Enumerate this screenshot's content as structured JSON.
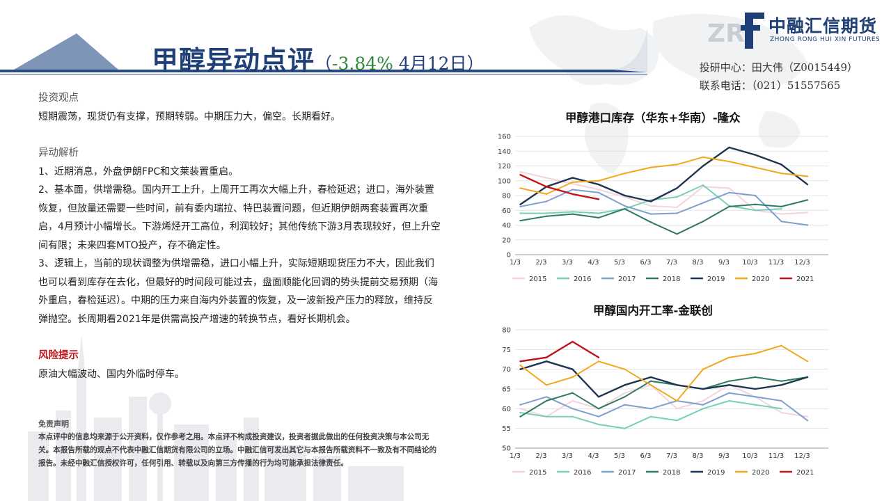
{
  "header": {
    "title": "甲醇异动点评",
    "sub_open": "（",
    "change_pct": "-3.84%",
    "date": " 4月12日",
    "sub_close": "）"
  },
  "logo": {
    "name_cn": "中融汇信期货",
    "name_en": "ZHONG RONG HUI XIN FUTURES"
  },
  "contact": {
    "line1": "投研中心：田大伟（Z0015449）",
    "line2": "联系电话：（021）51557565"
  },
  "view": {
    "heading": "投资观点",
    "text": "短期震荡，现货仍有支撑，预期转弱。中期压力大，偏空。长期看好。"
  },
  "analysis": {
    "heading": "异动解析",
    "p1": "1、近期消息，外盘伊朗FPC和文莱装置重启。",
    "p2": "2、基本面，供增需稳。国内开工上升，上周开工再次大幅上升，春检延迟；进口，海外装置恢复，但放量还需要一些时间，前有委内瑞拉、特巴装置问题，但近期伊朗两套装置再次重启，4月预计小幅增长。下游烯烃开工高位，利润较好；其他传统下游3月表现较好，但上升空间有限；未来四套MTO投产，存不确定性。",
    "p3": "3、逻辑上，当前的现状调整为供增需稳，进口小幅上升，实际短期现货压力不大，因此我们也可以看到库存在去化，但最好的时间段可能过去，盘面顺能化回调的势头提前交易预期（海外重启，春检延迟）。中期的压力来自海内外装置的恢复，及一波新投产压力的释放，维持反弹抛空。长周期看2021年是供需高投产增速的转换节点，看好长期机会。"
  },
  "risk": {
    "heading": "风险提示",
    "text": "原油大幅波动、国内外临时停车。"
  },
  "disclaimer": {
    "heading": "免责声明",
    "text": "本点评中的信息均来源于公开资料，仅作参考之用。本点评不构成投资建议，投资者据此做出的任何投资决策与本公司无关。本报告所载的观点不代表中融汇信期货有限公司的立场。中融汇信可发出其它与本报告所载资料不一致及有不同结论的报告。未经中融汇信授权许可，任何引用、转载以及向第三方传播的行为均可能承担法律责任。"
  },
  "chart_data": [
    {
      "type": "line",
      "title": "甲醇港口库存（华东+华南）-隆众",
      "categories": [
        "1/3",
        "2/3",
        "3/3",
        "4/3",
        "5/3",
        "6/3",
        "7/3",
        "8/3",
        "9/3",
        "10/3",
        "11/3",
        "12/3"
      ],
      "ylim": [
        0,
        160
      ],
      "yticks": [
        0,
        20,
        40,
        60,
        80,
        100,
        120,
        140,
        160
      ],
      "legend_position": "bottom",
      "series": [
        {
          "name": "2015",
          "color": "#f4d3dc",
          "values": [
            112,
            104,
            96,
            88,
            78,
            66,
            64,
            92,
            90,
            60,
            55,
            57
          ]
        },
        {
          "name": "2016",
          "color": "#78cfb8",
          "values": [
            56,
            56,
            58,
            56,
            62,
            74,
            78,
            94,
            66,
            60,
            62,
            null
          ]
        },
        {
          "name": "2017",
          "color": "#7ea0cc",
          "values": [
            65,
            72,
            88,
            84,
            66,
            55,
            56,
            70,
            84,
            80,
            45,
            40
          ]
        },
        {
          "name": "2018",
          "color": "#2f7a62",
          "values": [
            46,
            52,
            55,
            50,
            62,
            44,
            28,
            45,
            65,
            68,
            65,
            74
          ]
        },
        {
          "name": "2019",
          "color": "#1e3452",
          "values": [
            68,
            92,
            104,
            95,
            80,
            72,
            90,
            120,
            145,
            135,
            122,
            95
          ]
        },
        {
          "name": "2020",
          "color": "#f2a81c",
          "values": [
            90,
            82,
            98,
            100,
            110,
            118,
            122,
            132,
            126,
            118,
            110,
            106
          ]
        },
        {
          "name": "2021",
          "color": "#c0141b",
          "values": [
            108,
            92,
            82,
            75,
            null,
            null,
            null,
            null,
            null,
            null,
            null,
            null
          ]
        }
      ]
    },
    {
      "type": "line",
      "title": "甲醇国内开工率-金联创",
      "categories": [
        "1/3",
        "2/3",
        "3/3",
        "4/3",
        "5/3",
        "6/3",
        "7/3",
        "8/3",
        "9/3",
        "10/3",
        "11/3",
        "12/3"
      ],
      "ylim": [
        50,
        80
      ],
      "yticks": [
        50,
        55,
        60,
        65,
        70,
        75,
        80
      ],
      "legend_position": "bottom",
      "series": [
        {
          "name": "2015",
          "color": "#f4d3dc",
          "values": [
            60,
            58,
            62,
            60,
            64,
            66,
            60,
            62,
            66,
            63,
            59,
            58
          ]
        },
        {
          "name": "2016",
          "color": "#78cfb8",
          "values": [
            59,
            58,
            58,
            56,
            55,
            58,
            57,
            60,
            62,
            61,
            60,
            null
          ]
        },
        {
          "name": "2017",
          "color": "#7ea0cc",
          "values": [
            61,
            63,
            60,
            58,
            61,
            60,
            62,
            61,
            64,
            63,
            62,
            57
          ]
        },
        {
          "name": "2018",
          "color": "#2f7a62",
          "values": [
            58,
            62,
            64,
            60,
            63,
            67,
            66,
            65,
            67,
            68,
            67,
            68
          ]
        },
        {
          "name": "2019",
          "color": "#1e3452",
          "values": [
            70,
            72,
            70,
            63,
            66,
            68,
            66,
            65,
            66,
            65,
            66,
            68
          ]
        },
        {
          "name": "2020",
          "color": "#f2a81c",
          "values": [
            71,
            66,
            68,
            72,
            70,
            66,
            62,
            70,
            73,
            74,
            76,
            72
          ]
        },
        {
          "name": "2021",
          "color": "#c0141b",
          "values": [
            72,
            73,
            77,
            73,
            null,
            null,
            null,
            null,
            null,
            null,
            null,
            null
          ]
        }
      ]
    }
  ]
}
